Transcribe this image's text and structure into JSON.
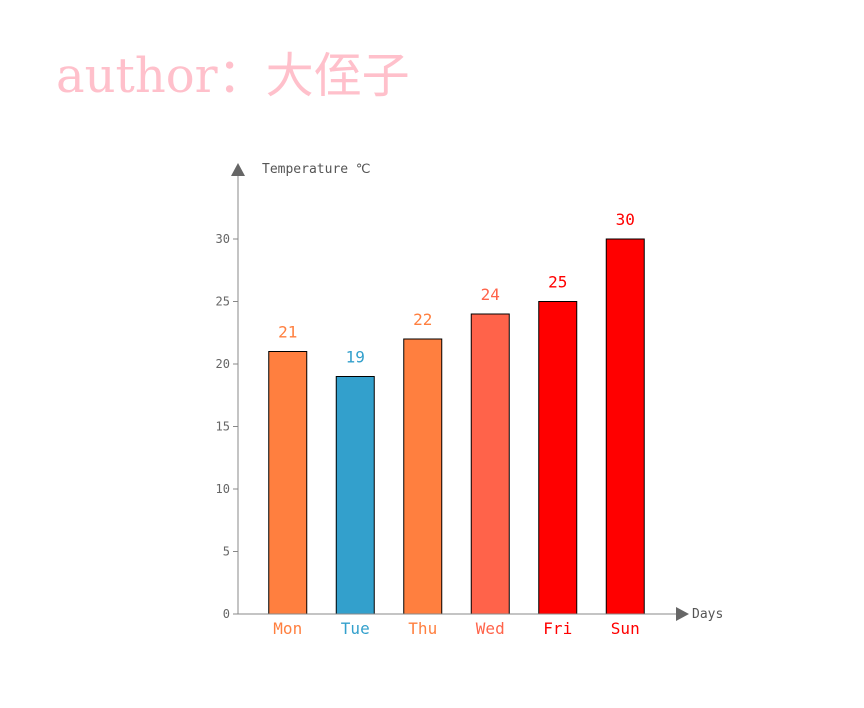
{
  "watermark": {
    "author_text": "author：大侄子",
    "color": "#ffc0cb"
  },
  "chart_data": {
    "type": "bar",
    "title": "",
    "xlabel": "Days",
    "ylabel": "Temperature ℃",
    "categories": [
      "Mon",
      "Tue",
      "Thu",
      "Wed",
      "Fri",
      "Sun"
    ],
    "values": [
      21,
      19,
      22,
      24,
      25,
      30
    ],
    "colors": [
      "#ff7f3f",
      "#33a0cc",
      "#ff7f3f",
      "#ff634a",
      "#ff0000",
      "#ff0000"
    ],
    "ylim": [
      0,
      30
    ],
    "yticks": [
      0,
      5,
      10,
      15,
      20,
      25,
      30
    ],
    "grid": false,
    "axis_color": "#888888",
    "bar_edge_color": "#000000"
  }
}
